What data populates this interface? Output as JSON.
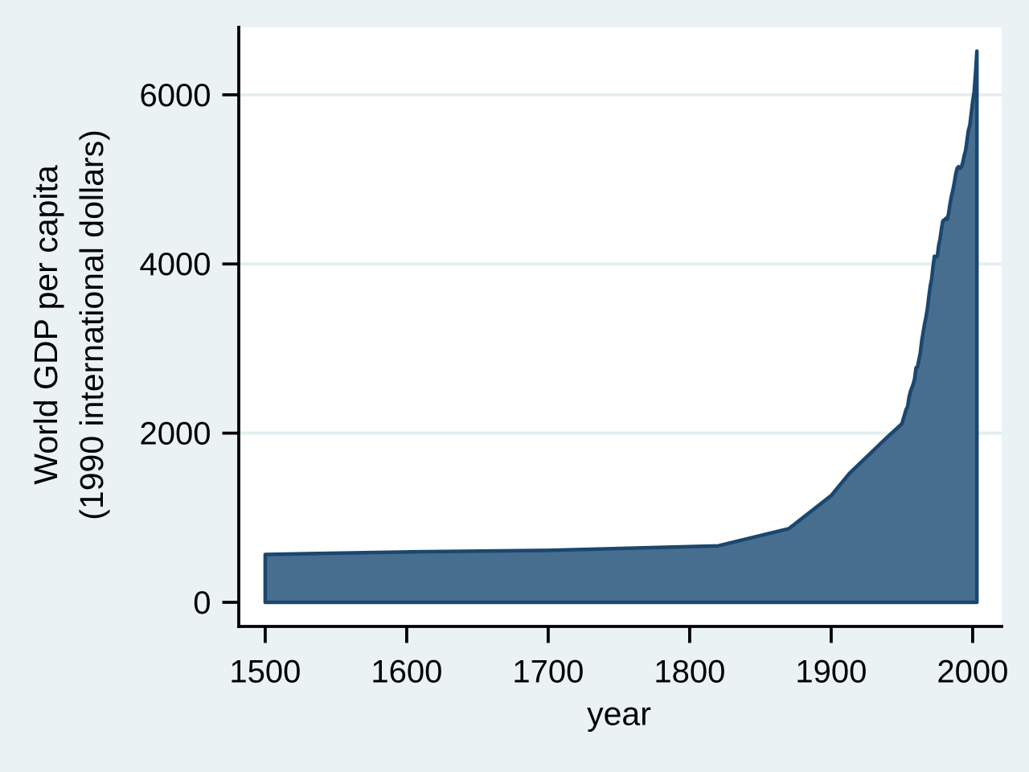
{
  "chart_data": {
    "type": "area",
    "title": "",
    "xlabel": "year",
    "ylabel": "World GDP per capita (1990 international dollars)",
    "ylabel_lines": [
      "World GDP per capita",
      "(1990 international dollars)"
    ],
    "x_ticks": [
      1500,
      1600,
      1700,
      1800,
      1900,
      2000
    ],
    "y_ticks": [
      0,
      2000,
      4000,
      6000
    ],
    "grid_y": [
      2000,
      4000,
      6000
    ],
    "xlim": [
      1481.3,
      2020.5
    ],
    "ylim": [
      -285,
      6797
    ],
    "legend_position": "none",
    "grid": "horizontal only",
    "series": [
      {
        "name": "World GDP per capita (1990 international dollars)",
        "points": [
          [
            1500,
            566
          ],
          [
            1600,
            596
          ],
          [
            1700,
            615
          ],
          [
            1820,
            667
          ],
          [
            1870,
            870
          ],
          [
            1900,
            1262
          ],
          [
            1913,
            1526
          ],
          [
            1940,
            1958
          ],
          [
            1950,
            2111
          ],
          [
            1951,
            2168
          ],
          [
            1952,
            2225
          ],
          [
            1953,
            2282
          ],
          [
            1954,
            2311
          ],
          [
            1955,
            2421
          ],
          [
            1956,
            2490
          ],
          [
            1957,
            2535
          ],
          [
            1958,
            2581
          ],
          [
            1959,
            2645
          ],
          [
            1960,
            2773
          ],
          [
            1961,
            2781
          ],
          [
            1962,
            2867
          ],
          [
            1963,
            2950
          ],
          [
            1964,
            3088
          ],
          [
            1965,
            3190
          ],
          [
            1966,
            3290
          ],
          [
            1967,
            3370
          ],
          [
            1968,
            3470
          ],
          [
            1969,
            3610
          ],
          [
            1970,
            3736
          ],
          [
            1971,
            3820
          ],
          [
            1972,
            3970
          ],
          [
            1973,
            4091
          ],
          [
            1974,
            4082
          ],
          [
            1975,
            4088
          ],
          [
            1976,
            4220
          ],
          [
            1977,
            4300
          ],
          [
            1978,
            4420
          ],
          [
            1979,
            4511
          ],
          [
            1980,
            4520
          ],
          [
            1981,
            4538
          ],
          [
            1982,
            4527
          ],
          [
            1983,
            4600
          ],
          [
            1984,
            4710
          ],
          [
            1985,
            4800
          ],
          [
            1986,
            4872
          ],
          [
            1987,
            4960
          ],
          [
            1988,
            5060
          ],
          [
            1989,
            5130
          ],
          [
            1990,
            5150
          ],
          [
            1991,
            5132
          ],
          [
            1992,
            5145
          ],
          [
            1993,
            5198
          ],
          [
            1994,
            5280
          ],
          [
            1995,
            5340
          ],
          [
            1996,
            5460
          ],
          [
            1997,
            5580
          ],
          [
            1998,
            5640
          ],
          [
            1999,
            5780
          ],
          [
            2000,
            5920
          ],
          [
            2001,
            6030
          ],
          [
            2002,
            6250
          ],
          [
            2003,
            6516
          ]
        ]
      }
    ],
    "colors": {
      "background": "#eaf2f3",
      "plot_background": "#ffffff",
      "gridline": "#e4eef0",
      "area_fill": "#476e8f",
      "area_stroke": "#1a476f",
      "axis": "#000000",
      "text": "#000000"
    }
  }
}
